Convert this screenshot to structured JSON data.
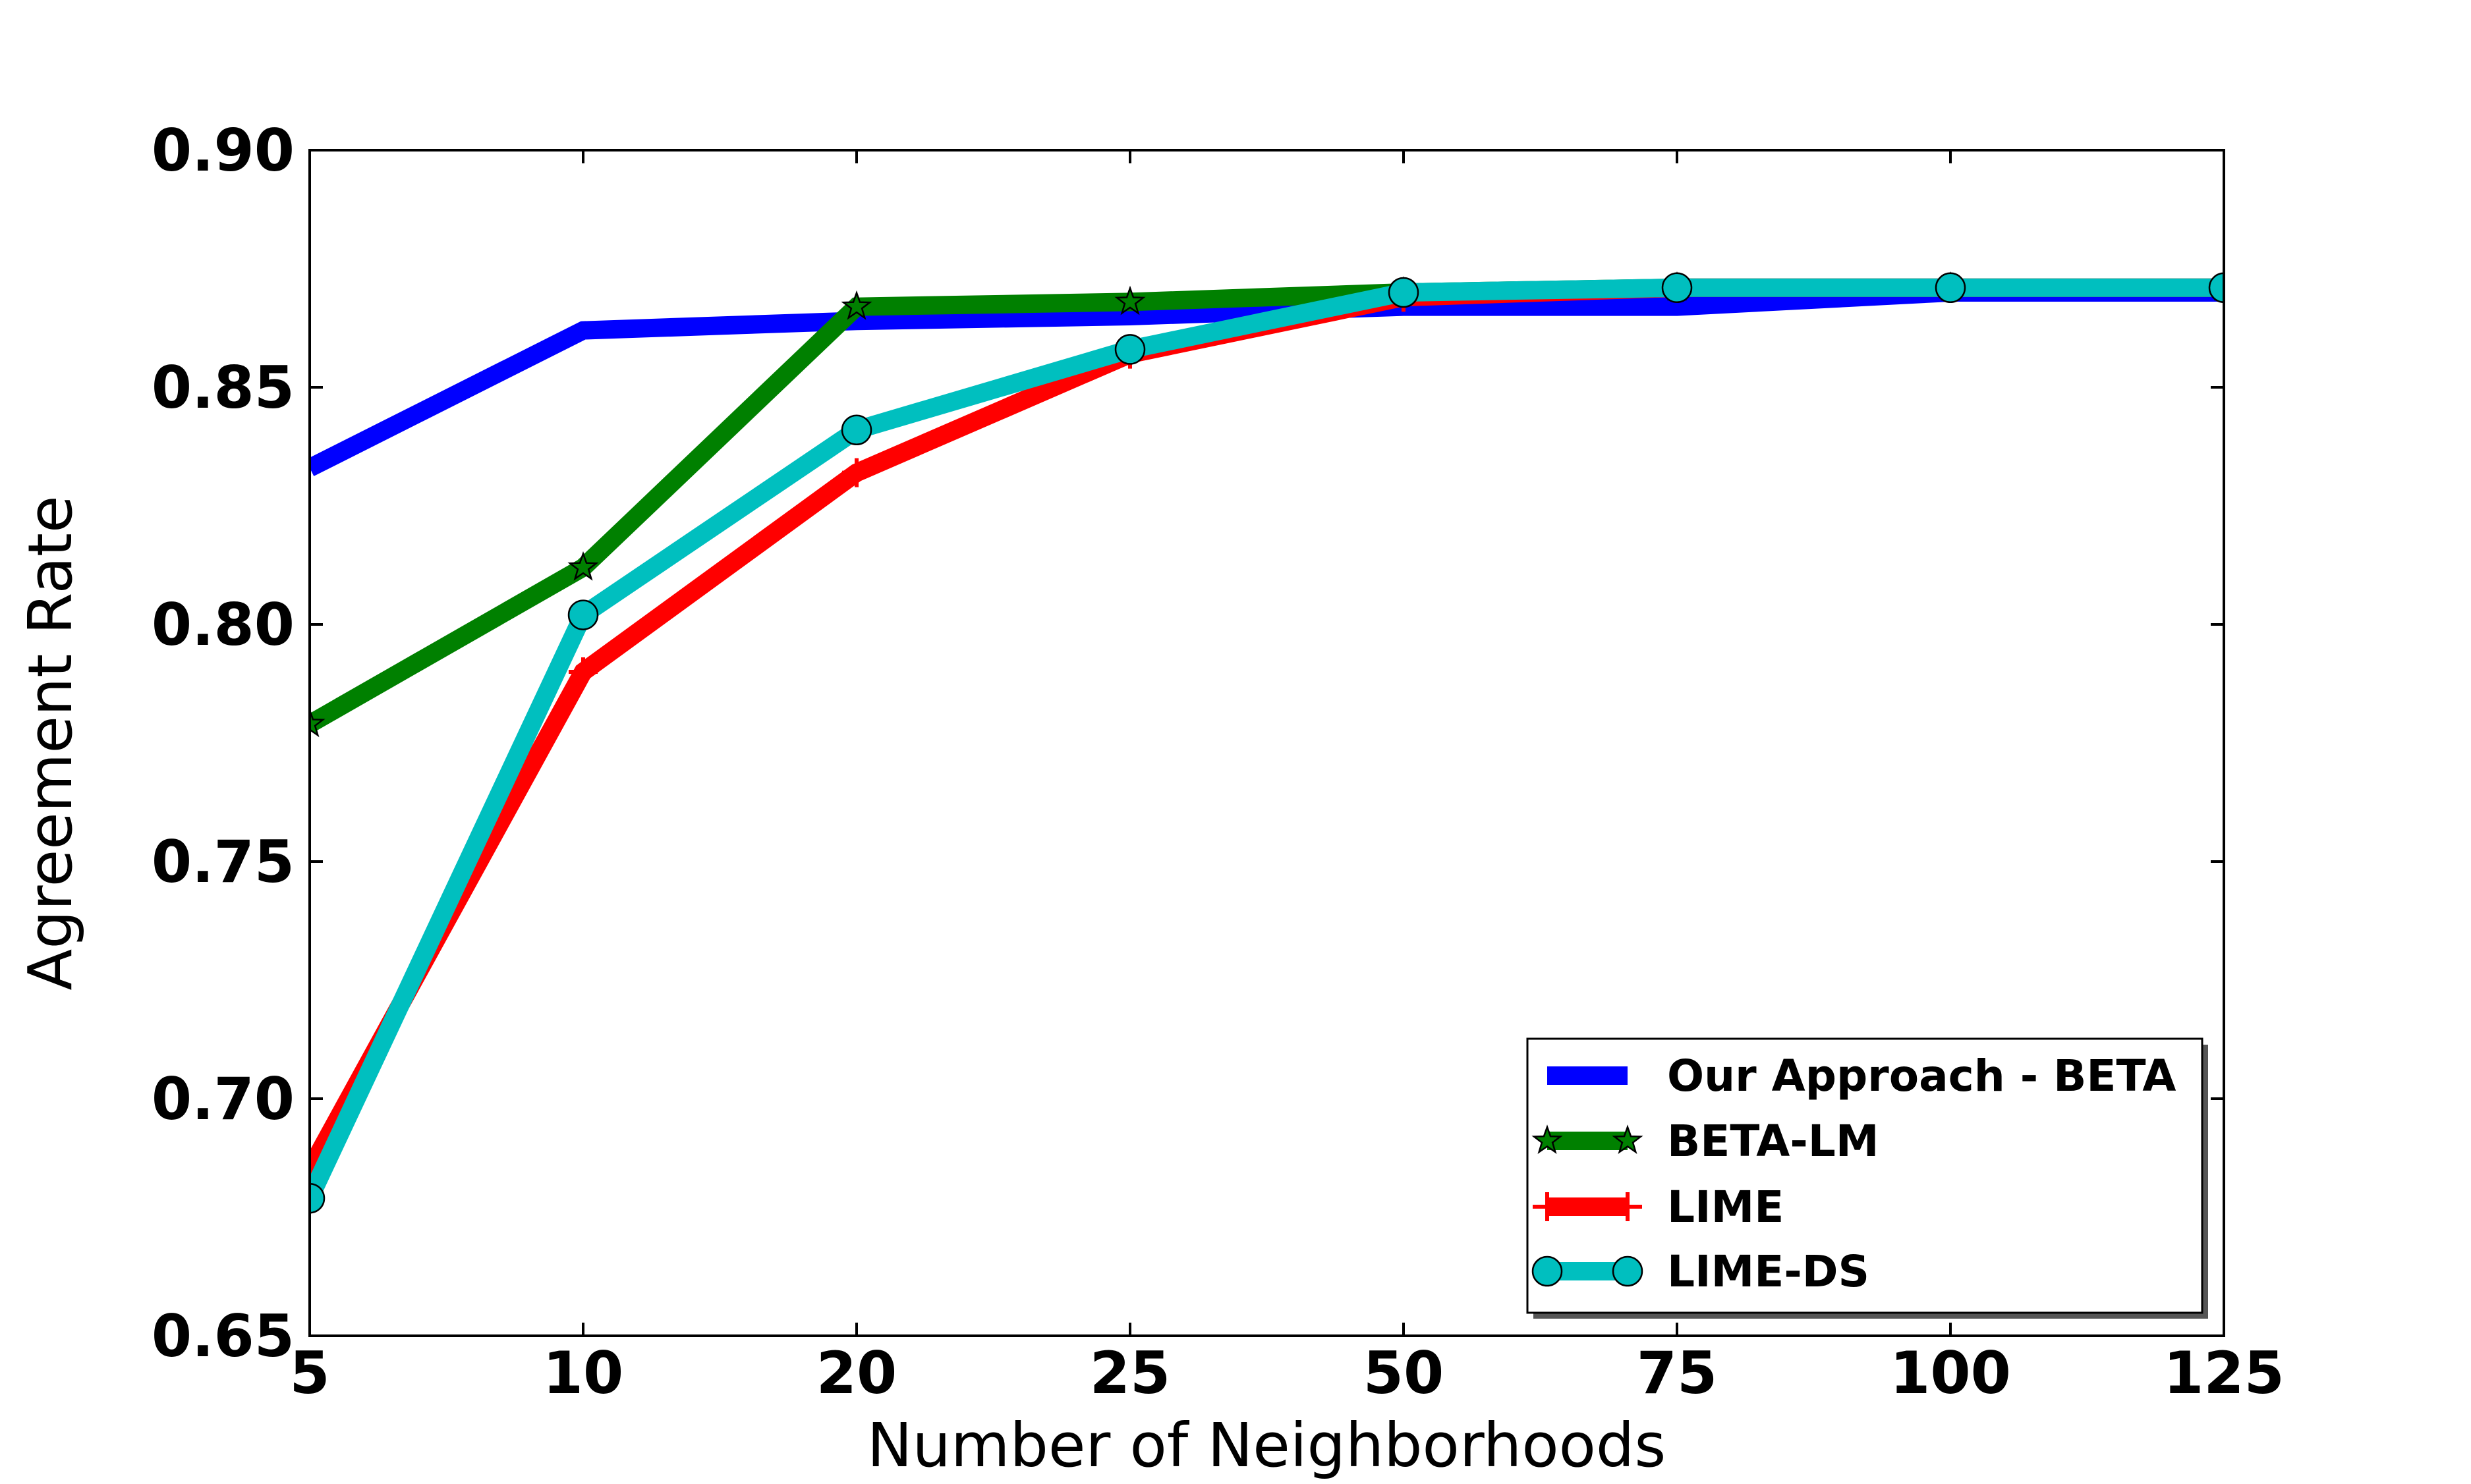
{
  "chart_data": {
    "type": "line",
    "title": "",
    "xlabel": "Number of Neighborhoods",
    "ylabel": "Agreement Rate",
    "x_values": [
      5,
      10,
      20,
      25,
      50,
      75,
      100,
      125
    ],
    "x_tick_labels": [
      "5",
      "10",
      "20",
      "25",
      "50",
      "75",
      "100",
      "125"
    ],
    "x_spacing": "equal-categorical",
    "ylim": [
      0.65,
      0.9
    ],
    "yticks": [
      0.65,
      0.7,
      0.75,
      0.8,
      0.85,
      0.9
    ],
    "ytick_labels": [
      "0.65",
      "0.70",
      "0.75",
      "0.80",
      "0.85",
      "0.90"
    ],
    "grid": false,
    "legend": {
      "position": "lower-right",
      "shadow": true
    },
    "series": [
      {
        "name": "Our Approach - BETA",
        "color": "#0000ff",
        "marker": "none",
        "values": [
          0.833,
          0.862,
          0.864,
          0.865,
          0.867,
          0.867,
          0.87,
          0.87
        ]
      },
      {
        "name": "BETA-LM",
        "color": "#008000",
        "marker": "star",
        "values": [
          0.779,
          0.812,
          0.867,
          0.868,
          0.87,
          0.871,
          0.871,
          0.871
        ]
      },
      {
        "name": "LIME",
        "color": "#ff0000",
        "marker": "plus",
        "values": [
          0.685,
          0.79,
          0.832,
          0.857,
          0.869,
          0.871,
          0.871,
          0.871
        ]
      },
      {
        "name": "LIME-DS",
        "color": "#00bfbf",
        "marker": "circle",
        "values": [
          0.679,
          0.802,
          0.841,
          0.858,
          0.87,
          0.871,
          0.871,
          0.871
        ]
      }
    ]
  }
}
